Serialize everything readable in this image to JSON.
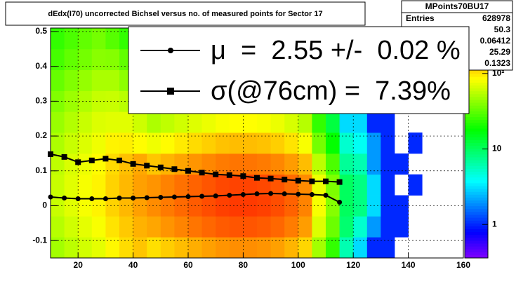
{
  "chart_data": {
    "type": "heatmap",
    "title": "dEdx(I70) uncorrected Bichsel versus no. of measured points for Sector 17",
    "xbins": [
      10,
      15,
      20,
      25,
      30,
      35,
      40,
      45,
      50,
      55,
      60,
      65,
      70,
      75,
      80,
      85,
      90,
      95,
      100,
      105,
      110,
      115,
      120,
      125,
      130,
      135,
      140,
      145,
      150,
      155,
      160
    ],
    "ybins": [
      -0.15,
      -0.09,
      -0.03,
      0.03,
      0.09,
      0.15,
      0.21,
      0.27,
      0.33,
      0.39,
      0.45,
      0.51
    ],
    "z": [
      [
        48,
        56,
        64,
        72,
        88,
        104,
        120,
        102,
        114,
        126,
        138,
        150,
        162,
        168,
        168,
        162,
        150,
        132,
        108,
        48,
        24,
        6,
        3,
        1,
        1,
        0,
        0,
        0,
        0,
        0
      ],
      [
        54,
        63,
        72,
        81,
        99,
        117,
        135,
        145,
        162,
        179,
        196,
        213,
        230,
        238,
        238,
        230,
        213,
        187,
        153,
        68,
        34,
        9,
        5,
        2,
        1,
        1,
        0,
        0,
        0,
        0
      ],
      [
        60,
        70,
        80,
        90,
        110,
        130,
        150,
        170,
        190,
        210,
        230,
        250,
        270,
        280,
        280,
        270,
        250,
        220,
        180,
        80,
        40,
        10,
        8,
        3,
        1,
        1,
        0,
        0,
        0,
        0
      ],
      [
        60,
        70,
        80,
        90,
        110,
        130,
        150,
        162,
        181,
        200,
        219,
        238,
        257,
        266,
        266,
        257,
        238,
        209,
        171,
        76,
        38,
        10,
        8,
        3,
        1,
        0,
        1,
        0,
        0,
        0
      ],
      [
        57,
        67,
        76,
        86,
        105,
        124,
        143,
        119,
        133,
        147,
        161,
        175,
        189,
        196,
        196,
        189,
        175,
        154,
        126,
        56,
        28,
        7,
        6,
        2,
        1,
        1,
        0,
        0,
        0,
        0
      ],
      [
        51,
        60,
        68,
        77,
        90,
        92,
        85,
        77,
        86,
        95,
        104,
        113,
        122,
        126,
        126,
        122,
        113,
        99,
        81,
        36,
        18,
        5,
        4,
        2,
        1,
        0,
        1,
        0,
        0,
        0
      ],
      [
        45,
        53,
        60,
        68,
        70,
        70,
        62,
        51,
        57,
        63,
        69,
        75,
        81,
        84,
        84,
        81,
        75,
        66,
        54,
        24,
        12,
        3,
        3,
        1,
        1,
        0,
        0,
        0,
        0,
        0
      ],
      [
        39,
        46,
        52,
        59,
        60,
        55,
        45,
        34,
        38,
        42,
        46,
        50,
        54,
        56,
        56,
        54,
        50,
        44,
        36,
        16,
        8,
        2,
        2,
        1,
        0,
        0,
        0,
        0,
        0,
        0
      ],
      [
        33,
        39,
        44,
        50,
        50,
        42,
        33,
        22,
        25,
        27,
        30,
        33,
        35,
        36,
        36,
        35,
        33,
        29,
        23,
        10,
        5,
        1,
        1,
        1,
        0,
        0,
        0,
        0,
        0,
        0
      ],
      [
        27,
        32,
        36,
        41,
        40,
        32,
        24,
        15,
        17,
        19,
        21,
        23,
        24,
        25,
        25,
        24,
        23,
        20,
        16,
        7,
        4,
        1,
        1,
        0,
        0,
        0,
        0,
        0,
        0,
        0
      ],
      [
        24,
        28,
        32,
        36,
        30,
        24,
        18,
        10,
        11,
        13,
        14,
        15,
        16,
        17,
        17,
        16,
        15,
        13,
        11,
        5,
        2,
        1,
        1,
        0,
        0,
        0,
        0,
        0,
        0,
        0
      ]
    ],
    "zlog": true,
    "zlim": [
      0.36,
      400
    ],
    "zticks": [
      1,
      10,
      {
        "value": 100,
        "label": "10²"
      }
    ],
    "xlim": [
      10,
      160
    ],
    "xticks": [
      20,
      40,
      60,
      80,
      100,
      120,
      140,
      160
    ],
    "ylim": [
      -0.15,
      0.51
    ],
    "yticks": [
      -0.1,
      0,
      0.1,
      0.2,
      0.3,
      0.4,
      0.5
    ],
    "grid": true,
    "x": [
      10,
      15,
      20,
      25,
      30,
      35,
      40,
      45,
      50,
      55,
      60,
      65,
      70,
      75,
      80,
      85,
      90,
      95,
      100,
      105,
      110,
      115
    ],
    "series": [
      {
        "name": "μ  =  2.55 +/-  0.02 %",
        "color": "#000000",
        "marker": "circle",
        "values": [
          0.025,
          0.022,
          0.02,
          0.02,
          0.02,
          0.022,
          0.022,
          0.023,
          0.024,
          0.025,
          0.026,
          0.027,
          0.028,
          0.03,
          0.032,
          0.034,
          0.035,
          0.034,
          0.033,
          0.032,
          0.03,
          0.01
        ]
      },
      {
        "name": "σ(@76cm) =  7.39%",
        "color": "#000000",
        "marker": "square",
        "values": [
          0.148,
          0.14,
          0.125,
          0.13,
          0.135,
          0.13,
          0.12,
          0.115,
          0.11,
          0.105,
          0.1,
          0.095,
          0.09,
          0.088,
          0.085,
          0.08,
          0.078,
          0.075,
          0.072,
          0.07,
          0.07,
          0.068
        ]
      }
    ],
    "stats": {
      "title": "MPoints70BU17",
      "entries_label": "Entries",
      "entries": 628978,
      "values": [
        50.3,
        0.06412,
        25.29,
        0.1323
      ]
    }
  }
}
